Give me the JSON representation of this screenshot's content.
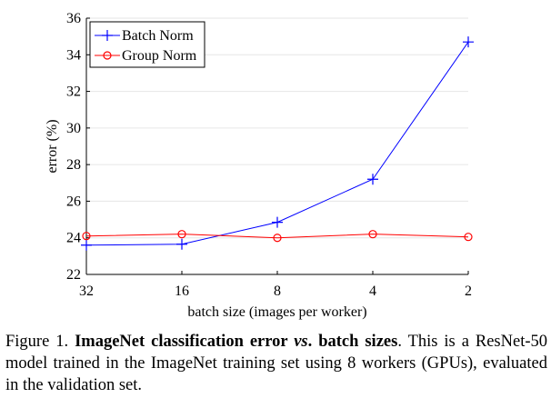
{
  "chart_data": {
    "type": "line",
    "categories": [
      "32",
      "16",
      "8",
      "4",
      "2"
    ],
    "xlabel": "batch size (images per worker)",
    "ylabel": "error (%)",
    "ylim": [
      22,
      36
    ],
    "yticks": [
      "22",
      "24",
      "26",
      "28",
      "30",
      "32",
      "34",
      "36"
    ],
    "grid": "horizontal",
    "legend": "top-left",
    "series": [
      {
        "name": "Batch Norm",
        "color": "#0000ff",
        "marker": "plus",
        "values": [
          23.6,
          23.65,
          24.85,
          27.2,
          34.7
        ]
      },
      {
        "name": "Group Norm",
        "color": "#ff0000",
        "marker": "circle",
        "values": [
          24.1,
          24.2,
          24.0,
          24.2,
          24.05
        ]
      }
    ]
  },
  "caption": {
    "label": "Figure 1.",
    "title": "ImageNet classification error ",
    "vs": "vs",
    "title_end": ". batch sizes",
    "body": ". This is a ResNet-50 model trained in the ImageNet training set using 8 workers (GPUs), evaluated in the validation set."
  }
}
